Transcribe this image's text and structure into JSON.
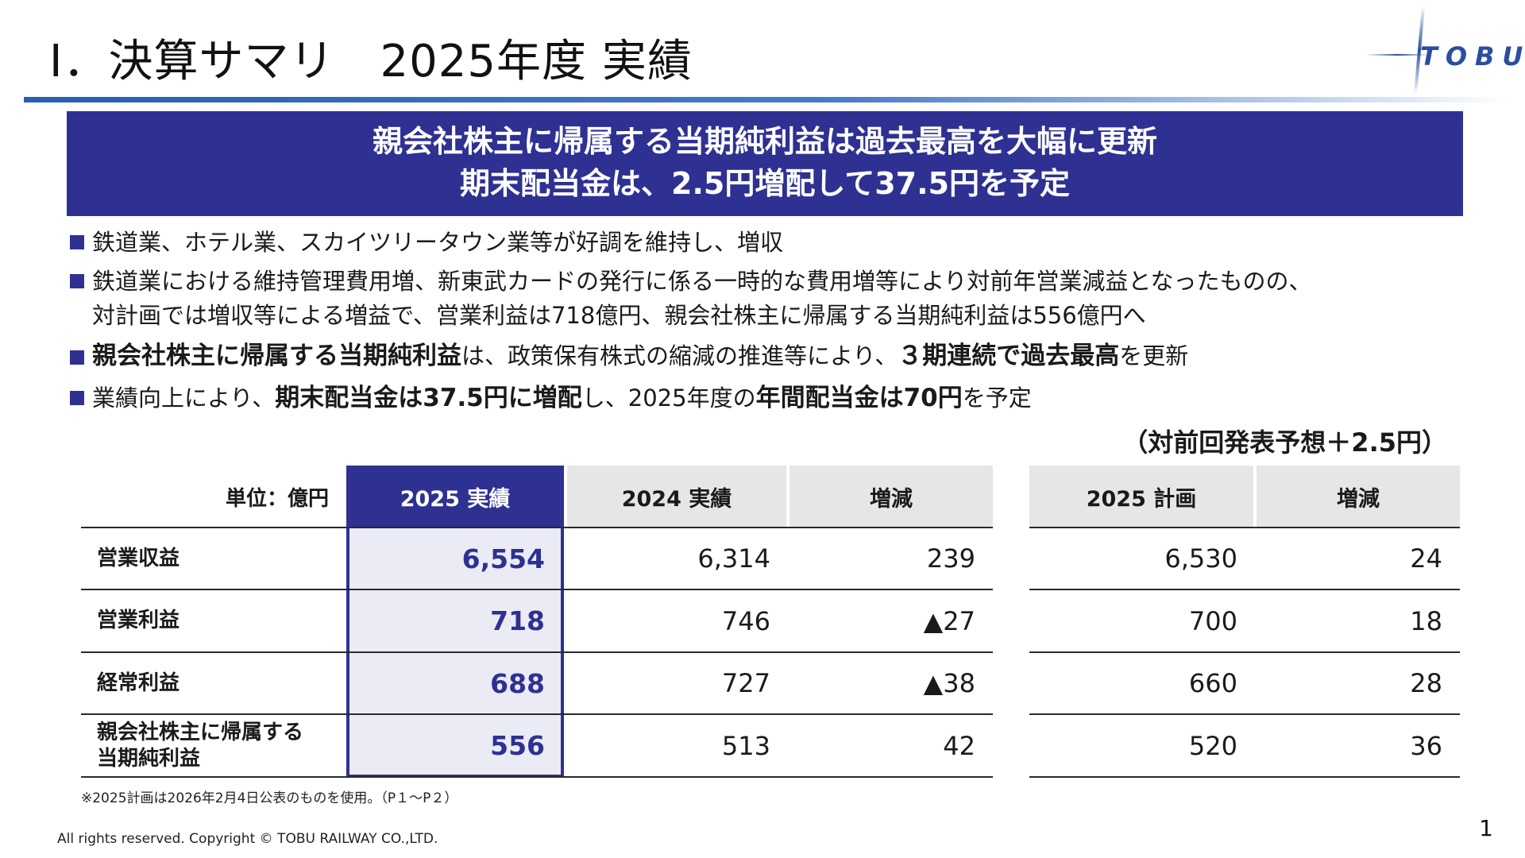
{
  "slide": {
    "title": "Ⅰ．決算サマリ　2025年度 実績",
    "logo_text": "TOBU",
    "logo_icon": "tobu-logo-icon",
    "accent_color": "#2e3192"
  },
  "headline": {
    "line1": "親会社株主に帰属する当期純利益は過去最高を大幅に更新",
    "line2": "期末配当金は、2.5円増配して37.5円を予定"
  },
  "bullets": {
    "b1": "鉄道業、ホテル業、スカイツリータウン業等が好調を維持し、増収",
    "b2_line1": "鉄道業における維持管理費用増、新東武カードの発行に係る一時的な費用増等により対前年営業減益となったものの、",
    "b2_line2": "対計画では増収等による増益で、営業利益は718億円、親会社株主に帰属する当期純利益は556億円へ",
    "b3_strong1": "親会社株主に帰属する当期純利益",
    "b3_text1": "は、政策保有株式の縮減の推進等により、",
    "b3_strong2": "３期連続で過去最高",
    "b3_text2": "を更新",
    "b4_text1": "業績向上により、",
    "b4_strong1": "期末配当金は37.5円に増配",
    "b4_text2": "し、2025年度の",
    "b4_strong2": "年間配当金は70円",
    "b4_text3": "を予定"
  },
  "note_right": "（対前回発表予想＋2.5円）",
  "table": {
    "unit": "単位：億円",
    "headers": {
      "actual_2025": "2025 実績",
      "actual_2024": "2024 実績",
      "change_yoy": "増減",
      "plan_2025": "2025 計画",
      "change_plan": "増減"
    },
    "rows": [
      {
        "label": "営業収益",
        "actual_2025": "6,554",
        "actual_2024": "6,314",
        "change_yoy": "239",
        "plan_2025": "6,530",
        "change_plan": "24"
      },
      {
        "label": "営業利益",
        "actual_2025": "718",
        "actual_2024": "746",
        "change_yoy": "▲27",
        "plan_2025": "700",
        "change_plan": "18"
      },
      {
        "label": "経常利益",
        "actual_2025": "688",
        "actual_2024": "727",
        "change_yoy": "▲38",
        "plan_2025": "660",
        "change_plan": "28"
      },
      {
        "label_line1": "親会社株主に帰属する",
        "label_line2": "当期純利益",
        "actual_2025": "556",
        "actual_2024": "513",
        "change_yoy": "42",
        "plan_2025": "520",
        "change_plan": "36"
      }
    ]
  },
  "footnote": "※2025計画は2026年2月4日公表のものを使用。（P１～P２）",
  "copyright": "All rights reserved. Copyright © TOBU RAILWAY CO.,LTD.",
  "page_number": "1"
}
